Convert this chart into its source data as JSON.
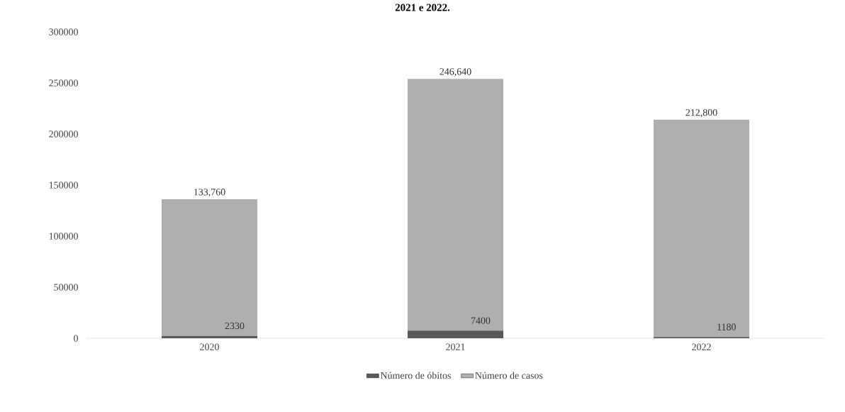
{
  "chart_data": {
    "type": "bar",
    "title": "2021 e 2022.",
    "stacked": true,
    "categories": [
      "2020",
      "2021",
      "2022"
    ],
    "series": [
      {
        "name": "Número de óbitos",
        "color": "#595959",
        "values": [
          2330,
          7400,
          1180
        ],
        "value_labels": [
          "2330",
          "7400",
          "1180"
        ]
      },
      {
        "name": "Número de casos",
        "color": "#afafaf",
        "values": [
          133760,
          246640,
          212800
        ],
        "value_labels": [
          "133,760",
          "246,640",
          "212,800"
        ]
      }
    ],
    "ylim": [
      0,
      300000
    ],
    "yticks": [
      0,
      50000,
      100000,
      150000,
      200000,
      250000,
      300000
    ],
    "grid": false,
    "legend": "bottom"
  }
}
